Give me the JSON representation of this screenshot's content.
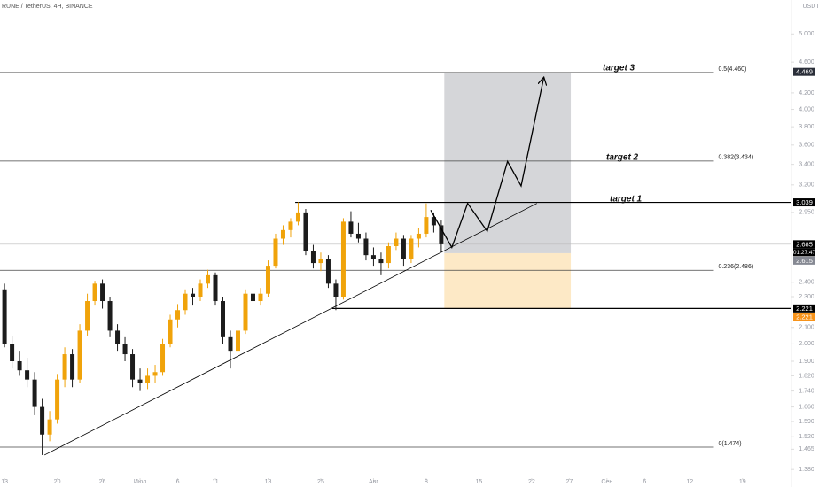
{
  "chart_data": {
    "type": "candlestick",
    "title": "RUNE / TetherUS, 4H, BINANCE",
    "y_unit": "USDT",
    "log_scale": true,
    "grid": false,
    "up_color": "#f0a30a",
    "down_color": "#1c1c1c",
    "xlim": [
      -0.6,
      104.5
    ],
    "ylim": [
      1.345,
      5.527
    ],
    "xticks": [
      {
        "value": 0,
        "label": "13"
      },
      {
        "value": 7,
        "label": "20"
      },
      {
        "value": 13,
        "label": "26"
      },
      {
        "value": 18,
        "label": "Июл"
      },
      {
        "value": 23,
        "label": "6"
      },
      {
        "value": 28,
        "label": "11"
      },
      {
        "value": 35,
        "label": "18"
      },
      {
        "value": 42,
        "label": "25"
      },
      {
        "value": 49,
        "label": "Авг"
      },
      {
        "value": 56,
        "label": "8"
      },
      {
        "value": 63,
        "label": "15"
      },
      {
        "value": 70,
        "label": "22"
      },
      {
        "value": 75,
        "label": "27"
      },
      {
        "value": 80,
        "label": "Сен"
      },
      {
        "value": 85,
        "label": "6"
      },
      {
        "value": 91,
        "label": "12"
      },
      {
        "value": 98,
        "label": "19"
      }
    ],
    "yticks": [
      {
        "value": 5,
        "label": "5.000"
      },
      {
        "value": 4.6,
        "label": "4.600"
      },
      {
        "value": 4.2,
        "label": "4.200"
      },
      {
        "value": 4,
        "label": "4.000"
      },
      {
        "value": 3.8,
        "label": "3.800"
      },
      {
        "value": 3.6,
        "label": "3.600"
      },
      {
        "value": 3.4,
        "label": "3.400"
      },
      {
        "value": 3.2,
        "label": "3.200"
      },
      {
        "value": 2.95,
        "label": "2.950"
      },
      {
        "value": 2.4,
        "label": "2.400"
      },
      {
        "value": 2.3,
        "label": "2.300"
      },
      {
        "value": 2.1,
        "label": "2.100"
      },
      {
        "value": 2,
        "label": "2.000"
      },
      {
        "value": 1.9,
        "label": "1.900"
      },
      {
        "value": 1.82,
        "label": "1.820"
      },
      {
        "value": 1.74,
        "label": "1.740"
      },
      {
        "value": 1.66,
        "label": "1.660"
      },
      {
        "value": 1.59,
        "label": "1.590"
      },
      {
        "value": 1.52,
        "label": "1.520"
      },
      {
        "value": 1.465,
        "label": "1.465"
      },
      {
        "value": 1.38,
        "label": "1.380"
      }
    ],
    "candles": {
      "x": [
        0,
        1,
        2,
        3,
        4,
        5,
        6,
        7,
        8,
        9,
        10,
        11,
        12,
        13,
        14,
        15,
        16,
        17,
        18,
        19,
        20,
        21,
        22,
        23,
        24,
        25,
        26,
        27,
        28,
        29,
        30,
        31,
        32,
        33,
        34,
        35,
        36,
        37,
        38,
        39,
        40,
        41,
        42,
        43,
        44,
        45,
        46,
        47,
        48,
        49,
        50,
        51,
        52,
        53,
        54,
        55,
        56,
        57,
        58
      ],
      "open": [
        2.35,
        2.0,
        1.9,
        1.85,
        1.8,
        1.66,
        1.53,
        1.6,
        1.8,
        1.94,
        1.8,
        2.08,
        2.27,
        2.39,
        2.27,
        2.08,
        2.0,
        1.94,
        1.8,
        1.78,
        1.82,
        1.84,
        2.0,
        2.15,
        2.21,
        2.32,
        2.3,
        2.39,
        2.45,
        2.27,
        2.04,
        1.96,
        2.08,
        2.32,
        2.27,
        2.32,
        2.52,
        2.73,
        2.8,
        2.87,
        2.95,
        2.63,
        2.54,
        2.57,
        2.39,
        2.3,
        2.87,
        2.77,
        2.73,
        2.6,
        2.57,
        2.54,
        2.67,
        2.73,
        2.57,
        2.73,
        2.77,
        2.91,
        2.84
      ],
      "high": [
        2.39,
        2.05,
        1.96,
        1.92,
        1.84,
        1.7,
        1.64,
        1.83,
        1.98,
        1.97,
        2.12,
        2.32,
        2.41,
        2.42,
        2.3,
        2.12,
        2.04,
        1.97,
        1.86,
        1.86,
        1.88,
        2.03,
        2.18,
        2.25,
        2.35,
        2.36,
        2.42,
        2.49,
        2.47,
        2.3,
        2.08,
        2.11,
        2.35,
        2.36,
        2.36,
        2.56,
        2.77,
        2.84,
        2.9,
        3.04,
        2.98,
        2.68,
        2.62,
        2.6,
        2.42,
        2.9,
        2.96,
        2.86,
        2.78,
        2.66,
        2.62,
        2.7,
        2.78,
        2.76,
        2.76,
        2.82,
        3.03,
        2.95,
        2.88
      ],
      "low": [
        1.98,
        1.86,
        1.82,
        1.76,
        1.62,
        1.44,
        1.5,
        1.58,
        1.76,
        1.76,
        1.78,
        2.05,
        2.24,
        2.22,
        2.04,
        1.96,
        1.9,
        1.76,
        1.74,
        1.75,
        1.78,
        1.82,
        1.98,
        2.1,
        2.18,
        2.24,
        2.27,
        2.36,
        2.24,
        2.0,
        1.86,
        1.93,
        2.06,
        2.22,
        2.24,
        2.3,
        2.5,
        2.68,
        2.74,
        2.84,
        2.6,
        2.5,
        2.48,
        2.36,
        2.21,
        2.28,
        2.74,
        2.7,
        2.56,
        2.52,
        2.45,
        2.5,
        2.64,
        2.52,
        2.54,
        2.66,
        2.74,
        2.78,
        2.62
      ],
      "close": [
        2.0,
        1.9,
        1.85,
        1.8,
        1.66,
        1.53,
        1.6,
        1.8,
        1.94,
        1.8,
        2.08,
        2.27,
        2.39,
        2.27,
        2.08,
        2.0,
        1.94,
        1.8,
        1.78,
        1.82,
        1.84,
        2.0,
        2.15,
        2.21,
        2.32,
        2.3,
        2.39,
        2.45,
        2.27,
        2.04,
        1.96,
        2.08,
        2.32,
        2.27,
        2.32,
        2.52,
        2.73,
        2.8,
        2.87,
        2.95,
        2.63,
        2.54,
        2.57,
        2.39,
        2.3,
        2.87,
        2.77,
        2.73,
        2.6,
        2.57,
        2.54,
        2.67,
        2.73,
        2.57,
        2.73,
        2.77,
        2.91,
        2.84,
        2.685
      ]
    },
    "fib_levels": [
      {
        "value": 4.46,
        "label": "0.5(4.460)"
      },
      {
        "value": 3.434,
        "label": "0.382(3.434)"
      },
      {
        "value": 2.486,
        "label": "0.236(2.486)"
      },
      {
        "value": 1.474,
        "label": "0(1.474)"
      }
    ],
    "fib_x_end": 94.2,
    "levels": [
      {
        "value": 3.039,
        "x_start": 38.6
      },
      {
        "value": 2.221,
        "x_start": 43.5
      }
    ],
    "trendline": {
      "x": [
        5.3,
        70.7
      ],
      "y": [
        1.44,
        3.03
      ]
    },
    "projection": {
      "x": [
        56.6,
        59.4,
        61.5,
        64.1,
        66.8,
        68.6,
        71.6
      ],
      "y": [
        2.97,
        2.66,
        3.03,
        2.79,
        3.43,
        3.19,
        4.39
      ]
    },
    "target_box": {
      "x": [
        58.4,
        75.2
      ],
      "y": [
        2.615,
        4.46
      ],
      "color": "#d5d6d9"
    },
    "stop_box": {
      "x": [
        58.4,
        75.2
      ],
      "y": [
        2.221,
        2.615
      ],
      "color": "#fde9c6"
    },
    "current_price": 2.685,
    "countdown": "01:27:47",
    "price_labels": [
      {
        "value": 4.469,
        "color": "#2a2e39"
      },
      {
        "value": 3.039,
        "color": "#000000"
      },
      {
        "value": 2.685,
        "color": "#000000"
      },
      {
        "value": 2.615,
        "color": "#868993"
      },
      {
        "value": 2.221,
        "color": "#000000"
      },
      {
        "value": 2.221,
        "color": "#f7931a"
      }
    ],
    "targets": [
      "target 3",
      "target 2",
      "target 1"
    ]
  }
}
